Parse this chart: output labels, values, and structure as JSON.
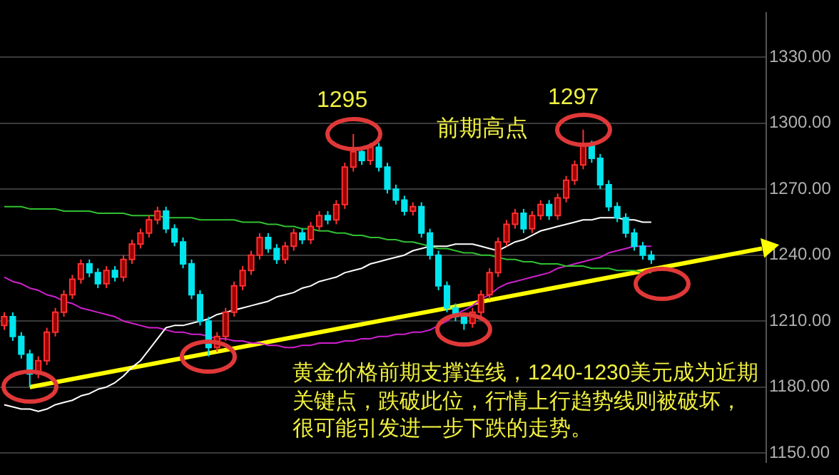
{
  "chart_data": {
    "type": "candlestick",
    "categories": [
      null,
      null,
      null,
      null,
      null,
      null,
      null,
      null,
      null,
      null,
      null,
      null,
      null,
      null,
      null,
      null,
      null,
      null,
      null,
      null,
      null,
      null,
      null,
      null,
      null,
      null,
      null,
      null,
      null,
      null,
      null,
      null,
      null,
      null,
      null,
      null,
      null,
      null,
      null,
      null,
      null,
      null,
      null,
      null,
      null,
      null,
      null,
      null,
      null,
      null,
      null,
      null,
      null,
      null,
      null,
      null,
      null,
      null,
      null,
      null,
      null,
      null,
      null,
      null,
      null,
      null,
      null,
      null,
      null,
      null,
      null,
      null,
      null,
      null,
      null,
      null,
      null,
      null,
      null,
      null,
      null,
      null,
      null,
      null,
      null,
      null,
      null,
      null,
      null,
      null
    ],
    "ohlc": [
      [
        1208,
        1214,
        1206,
        1212
      ],
      [
        1212,
        1214,
        1201,
        1203
      ],
      [
        1203,
        1205,
        1193,
        1195
      ],
      [
        1195,
        1197,
        1180,
        1186
      ],
      [
        1186,
        1194,
        1184,
        1192
      ],
      [
        1192,
        1207,
        1190,
        1205
      ],
      [
        1205,
        1216,
        1203,
        1214
      ],
      [
        1214,
        1224,
        1212,
        1222
      ],
      [
        1222,
        1231,
        1220,
        1229
      ],
      [
        1229,
        1238,
        1227,
        1236
      ],
      [
        1236,
        1238,
        1230,
        1232
      ],
      [
        1232,
        1234,
        1225,
        1227
      ],
      [
        1227,
        1235,
        1225,
        1233
      ],
      [
        1233,
        1235,
        1228,
        1230
      ],
      [
        1230,
        1240,
        1228,
        1238
      ],
      [
        1238,
        1247,
        1236,
        1245
      ],
      [
        1245,
        1252,
        1243,
        1250
      ],
      [
        1250,
        1258,
        1248,
        1256
      ],
      [
        1256,
        1262,
        1254,
        1260
      ],
      [
        1260,
        1262,
        1250,
        1252
      ],
      [
        1252,
        1254,
        1244,
        1246
      ],
      [
        1246,
        1248,
        1234,
        1236
      ],
      [
        1236,
        1238,
        1220,
        1222
      ],
      [
        1222,
        1224,
        1208,
        1210
      ],
      [
        1210,
        1212,
        1194,
        1198
      ],
      [
        1198,
        1205,
        1196,
        1203
      ],
      [
        1203,
        1216,
        1201,
        1214
      ],
      [
        1214,
        1228,
        1212,
        1226
      ],
      [
        1226,
        1235,
        1224,
        1233
      ],
      [
        1233,
        1242,
        1231,
        1240
      ],
      [
        1240,
        1250,
        1238,
        1248
      ],
      [
        1248,
        1250,
        1241,
        1243
      ],
      [
        1243,
        1245,
        1236,
        1238
      ],
      [
        1238,
        1246,
        1236,
        1244
      ],
      [
        1244,
        1252,
        1242,
        1250
      ],
      [
        1250,
        1252,
        1245,
        1247
      ],
      [
        1247,
        1255,
        1245,
        1253
      ],
      [
        1253,
        1260,
        1251,
        1258
      ],
      [
        1258,
        1260,
        1254,
        1256
      ],
      [
        1256,
        1265,
        1254,
        1263
      ],
      [
        1263,
        1282,
        1261,
        1280
      ],
      [
        1280,
        1295,
        1278,
        1287
      ],
      [
        1287,
        1289,
        1281,
        1283
      ],
      [
        1283,
        1291,
        1281,
        1289
      ],
      [
        1289,
        1291,
        1278,
        1280
      ],
      [
        1280,
        1282,
        1268,
        1270
      ],
      [
        1270,
        1272,
        1263,
        1265
      ],
      [
        1265,
        1267,
        1258,
        1260
      ],
      [
        1260,
        1264,
        1258,
        1262
      ],
      [
        1262,
        1264,
        1248,
        1250
      ],
      [
        1250,
        1252,
        1238,
        1240
      ],
      [
        1240,
        1242,
        1224,
        1226
      ],
      [
        1226,
        1228,
        1214,
        1216
      ],
      [
        1216,
        1218,
        1210,
        1212
      ],
      [
        1212,
        1214,
        1206,
        1209
      ],
      [
        1209,
        1216,
        1207,
        1214
      ],
      [
        1214,
        1224,
        1212,
        1222
      ],
      [
        1222,
        1234,
        1220,
        1232
      ],
      [
        1232,
        1248,
        1230,
        1246
      ],
      [
        1246,
        1256,
        1244,
        1254
      ],
      [
        1254,
        1261,
        1252,
        1259
      ],
      [
        1259,
        1261,
        1250,
        1252
      ],
      [
        1252,
        1260,
        1250,
        1258
      ],
      [
        1258,
        1265,
        1256,
        1263
      ],
      [
        1263,
        1265,
        1256,
        1258
      ],
      [
        1258,
        1268,
        1256,
        1266
      ],
      [
        1266,
        1276,
        1264,
        1274
      ],
      [
        1274,
        1283,
        1272,
        1281
      ],
      [
        1281,
        1297,
        1279,
        1290
      ],
      [
        1290,
        1292,
        1282,
        1284
      ],
      [
        1284,
        1286,
        1270,
        1272
      ],
      [
        1272,
        1274,
        1260,
        1262
      ],
      [
        1262,
        1264,
        1255,
        1257
      ],
      [
        1257,
        1259,
        1248,
        1250
      ],
      [
        1250,
        1252,
        1242,
        1244
      ],
      [
        1244,
        1246,
        1238,
        1240
      ],
      [
        1240,
        1242,
        1236,
        1238
      ],
      null,
      null,
      null,
      null,
      null,
      null,
      null,
      null,
      null,
      null,
      null,
      null,
      null
    ],
    "series": [
      {
        "type": "line",
        "color": "#30c030",
        "values": [
          1262,
          1262,
          1262,
          1261,
          1261,
          1261,
          1261,
          1260,
          1260,
          1260,
          1260,
          1259,
          1259,
          1259,
          1259,
          1258,
          1258,
          1258,
          1258,
          1257,
          1257,
          1257,
          1257,
          1256,
          1256,
          1256,
          1256,
          1256,
          1255,
          1255,
          1255,
          1254,
          1254,
          1253,
          1253,
          1252,
          1252,
          1251,
          1251,
          1250,
          1250,
          1249,
          1249,
          1248,
          1248,
          1247,
          1247,
          1246,
          1246,
          1245,
          1244,
          1243,
          1243,
          1242,
          1241,
          1241,
          1240,
          1240,
          1239,
          1238,
          1238,
          1237,
          1237,
          1236,
          1236,
          1236,
          1235,
          1235,
          1235,
          1234,
          1234,
          1234,
          1233,
          1233,
          1233,
          1232,
          1232,
          null,
          null,
          null,
          null,
          null,
          null,
          null,
          null,
          null,
          null,
          null,
          null,
          null
        ]
      },
      {
        "type": "line",
        "color": "#ffffff",
        "values": [
          1172,
          1171,
          1170,
          1170,
          1169,
          1170,
          1172,
          1173,
          1174,
          1176,
          1177,
          1179,
          1180,
          1182,
          1185,
          1189,
          1192,
          1197,
          1202,
          1207,
          1208,
          1208,
          1209,
          1210,
          1211,
          1213,
          1214,
          1215,
          1216,
          1217,
          1218,
          1219,
          1221,
          1222,
          1223,
          1225,
          1226,
          1228,
          1229,
          1230,
          1232,
          1233,
          1234,
          1236,
          1237,
          1238,
          1239,
          1240,
          1242,
          1243,
          1244,
          1244,
          1244,
          1245,
          1245,
          1245,
          1244,
          1243,
          1242,
          1244,
          1246,
          1247,
          1249,
          1251,
          1252,
          1253,
          1254,
          1255,
          1256,
          1256,
          1257,
          1257,
          1257,
          1256,
          1256,
          1255,
          1255,
          null,
          null,
          null,
          null,
          null,
          null,
          null,
          null,
          null,
          null,
          null,
          null,
          null
        ]
      },
      {
        "type": "line",
        "color": "#d020d0",
        "values": [
          1230,
          1228,
          1227,
          1225,
          1224,
          1222,
          1221,
          1219,
          1218,
          1216,
          1215,
          1214,
          1213,
          1212,
          1210,
          1209,
          1208,
          1207,
          1207,
          1206,
          1205,
          1205,
          1204,
          1204,
          1203,
          1202,
          1202,
          1201,
          1201,
          1200,
          1200,
          1199,
          1199,
          1198,
          1198,
          1199,
          1199,
          1200,
          1200,
          1200,
          1201,
          1201,
          1202,
          1202,
          1203,
          1203,
          1204,
          1204,
          1205,
          1205,
          1206,
          1208,
          1210,
          1213,
          1215,
          1217,
          1220,
          1222,
          1225,
          1227,
          1228,
          1229,
          1230,
          1231,
          1232,
          1234,
          1235,
          1236,
          1237,
          1238,
          1239,
          1241,
          1242,
          1243,
          1244,
          1244,
          1244,
          null,
          null,
          null,
          null,
          null,
          null,
          null,
          null,
          null,
          null,
          null,
          null,
          null
        ]
      },
      {
        "type": "line",
        "color": "#ffff00",
        "values": [
          null,
          null,
          null,
          1180,
          null,
          null,
          null,
          null,
          null,
          null,
          null,
          null,
          null,
          null,
          null,
          null,
          null,
          null,
          null,
          null,
          null,
          null,
          null,
          null,
          null,
          null,
          null,
          null,
          null,
          null,
          null,
          null,
          null,
          null,
          null,
          null,
          null,
          null,
          null,
          null,
          null,
          null,
          null,
          null,
          null,
          null,
          null,
          null,
          null,
          null,
          null,
          null,
          null,
          null,
          null,
          null,
          null,
          null,
          null,
          null,
          null,
          null,
          null,
          null,
          null,
          null,
          null,
          null,
          null,
          null,
          null,
          null,
          null,
          null,
          null,
          null,
          null,
          null,
          null,
          null,
          null,
          null,
          null,
          null,
          null,
          null,
          null,
          null,
          null,
          1243
        ]
      }
    ],
    "ylim": [
      1146,
      1350
    ],
    "yticks": [
      {
        "value": 1150,
        "label": "1150.00"
      },
      {
        "value": 1180,
        "label": "1180.00"
      },
      {
        "value": 1210,
        "label": "1210.00"
      },
      {
        "value": 1240,
        "label": "1240.00"
      },
      {
        "value": 1270,
        "label": "1270.00"
      },
      {
        "value": 1300,
        "label": "1300.00"
      },
      {
        "value": 1330,
        "label": "1330.00"
      }
    ],
    "grid": "y",
    "legend": false,
    "tick_labels": "y",
    "annotations": [
      "1295",
      "1297",
      "前期高点",
      "黄金价格前期支撑连线，1240-1230美元成为近期关键点，跌破此位，行情上行趋势线则被破坏，很可能引发进一步下跌的走势。"
    ]
  }
}
